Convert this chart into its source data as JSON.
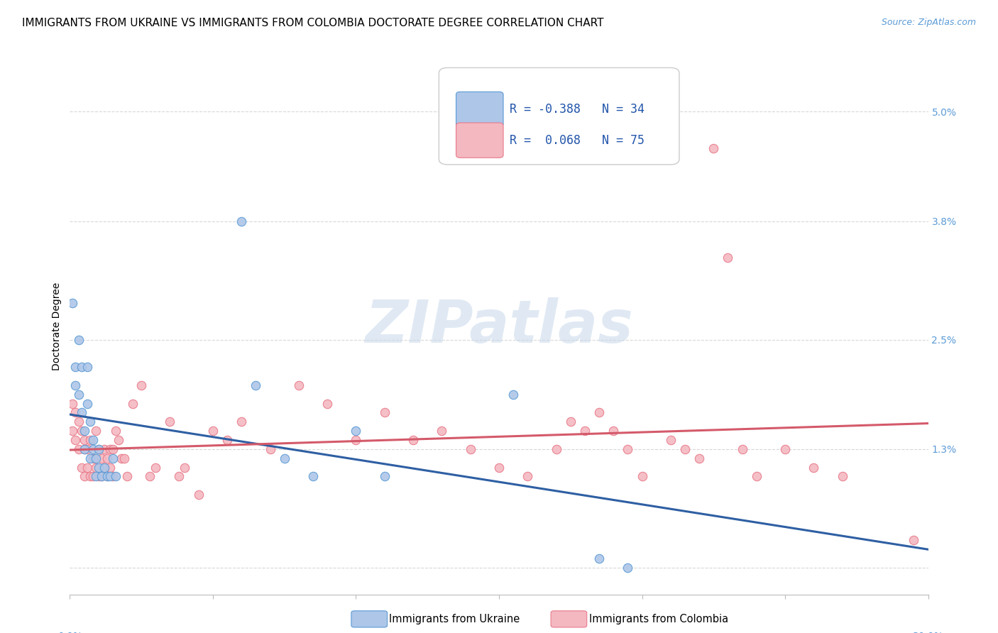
{
  "title": "IMMIGRANTS FROM UKRAINE VS IMMIGRANTS FROM COLOMBIA DOCTORATE DEGREE CORRELATION CHART",
  "source": "Source: ZipAtlas.com",
  "ylabel": "Doctorate Degree",
  "yticks": [
    0.0,
    0.013,
    0.025,
    0.038,
    0.05
  ],
  "ytick_labels": [
    "",
    "1.3%",
    "2.5%",
    "3.8%",
    "5.0%"
  ],
  "xlim": [
    0.0,
    0.3
  ],
  "ylim": [
    -0.003,
    0.056
  ],
  "ukraine_color": "#aec6e8",
  "ukraine_edge_color": "#5b9bd5",
  "colombia_color": "#f4b8c1",
  "colombia_edge_color": "#e87a8a",
  "ukraine_line_color": "#2e5fa3",
  "colombia_line_color": "#d45a6a",
  "watermark": "ZIPatlas",
  "marker_size": 80,
  "title_fontsize": 11,
  "axis_label_fontsize": 10,
  "tick_fontsize": 10,
  "legend_fontsize": 12,
  "background_color": "#ffffff",
  "grid_color": "#d8d8d8",
  "ukraine_x": [
    0.001,
    0.002,
    0.002,
    0.003,
    0.003,
    0.004,
    0.004,
    0.005,
    0.005,
    0.006,
    0.006,
    0.007,
    0.007,
    0.008,
    0.008,
    0.009,
    0.009,
    0.01,
    0.01,
    0.011,
    0.012,
    0.013,
    0.014,
    0.015,
    0.016,
    0.06,
    0.065,
    0.075,
    0.085,
    0.1,
    0.11,
    0.155,
    0.185,
    0.195
  ],
  "ukraine_y": [
    0.029,
    0.022,
    0.02,
    0.019,
    0.025,
    0.022,
    0.017,
    0.015,
    0.013,
    0.022,
    0.018,
    0.016,
    0.012,
    0.014,
    0.013,
    0.012,
    0.01,
    0.013,
    0.011,
    0.01,
    0.011,
    0.01,
    0.01,
    0.012,
    0.01,
    0.038,
    0.02,
    0.012,
    0.01,
    0.015,
    0.01,
    0.019,
    0.001,
    0.0
  ],
  "colombia_x": [
    0.001,
    0.001,
    0.002,
    0.002,
    0.003,
    0.003,
    0.004,
    0.004,
    0.005,
    0.005,
    0.005,
    0.006,
    0.006,
    0.007,
    0.007,
    0.008,
    0.008,
    0.009,
    0.009,
    0.01,
    0.01,
    0.011,
    0.011,
    0.012,
    0.012,
    0.013,
    0.013,
    0.014,
    0.014,
    0.015,
    0.015,
    0.016,
    0.017,
    0.018,
    0.019,
    0.02,
    0.022,
    0.025,
    0.028,
    0.03,
    0.035,
    0.038,
    0.04,
    0.045,
    0.05,
    0.055,
    0.06,
    0.07,
    0.08,
    0.09,
    0.1,
    0.11,
    0.12,
    0.13,
    0.14,
    0.15,
    0.16,
    0.17,
    0.175,
    0.18,
    0.185,
    0.19,
    0.195,
    0.2,
    0.21,
    0.215,
    0.22,
    0.225,
    0.23,
    0.235,
    0.24,
    0.25,
    0.26,
    0.27,
    0.295
  ],
  "colombia_y": [
    0.018,
    0.015,
    0.017,
    0.014,
    0.016,
    0.013,
    0.015,
    0.011,
    0.014,
    0.013,
    0.01,
    0.013,
    0.011,
    0.014,
    0.01,
    0.012,
    0.01,
    0.015,
    0.011,
    0.013,
    0.01,
    0.012,
    0.01,
    0.013,
    0.011,
    0.01,
    0.012,
    0.011,
    0.013,
    0.013,
    0.01,
    0.015,
    0.014,
    0.012,
    0.012,
    0.01,
    0.018,
    0.02,
    0.01,
    0.011,
    0.016,
    0.01,
    0.011,
    0.008,
    0.015,
    0.014,
    0.016,
    0.013,
    0.02,
    0.018,
    0.014,
    0.017,
    0.014,
    0.015,
    0.013,
    0.011,
    0.01,
    0.013,
    0.016,
    0.015,
    0.017,
    0.015,
    0.013,
    0.01,
    0.014,
    0.013,
    0.012,
    0.046,
    0.034,
    0.013,
    0.01,
    0.013,
    0.011,
    0.01,
    0.003
  ]
}
